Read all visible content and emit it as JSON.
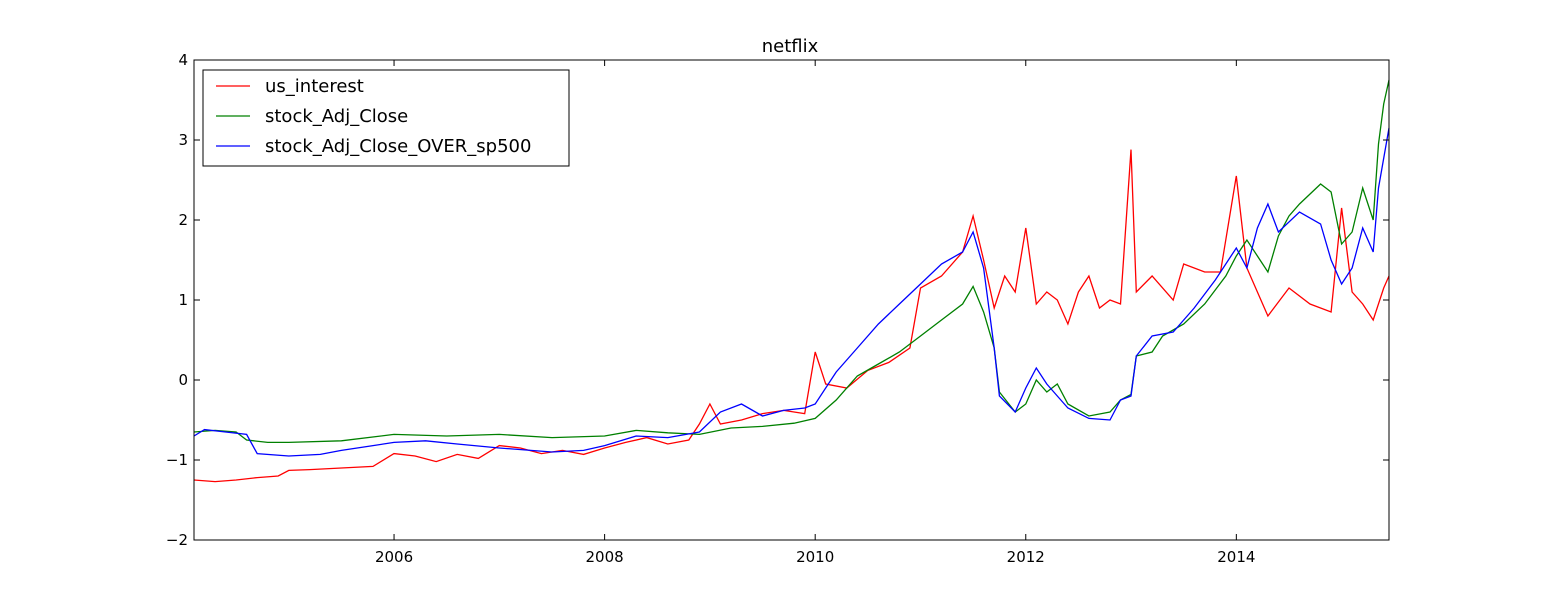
{
  "chart_data": {
    "type": "line",
    "title": "netflix",
    "xlabel": "",
    "ylabel": "",
    "xlim": [
      2004.1,
      2015.45
    ],
    "ylim": [
      -2,
      4
    ],
    "x_ticks": [
      2006,
      2008,
      2010,
      2012,
      2014
    ],
    "y_ticks": [
      -2,
      -1,
      0,
      1,
      2,
      3,
      4
    ],
    "x_tick_labels": [
      "2006",
      "2008",
      "2010",
      "2012",
      "2014"
    ],
    "y_tick_labels": [
      "−2",
      "−1",
      "0",
      "1",
      "2",
      "3",
      "4"
    ],
    "legend_position": "top-left",
    "grid": false,
    "series": [
      {
        "name": "us_interest",
        "color": "#ff0000",
        "points": [
          [
            2004.1,
            -1.25
          ],
          [
            2004.3,
            -1.27
          ],
          [
            2004.5,
            -1.25
          ],
          [
            2004.7,
            -1.22
          ],
          [
            2004.9,
            -1.2
          ],
          [
            2005.0,
            -1.13
          ],
          [
            2005.2,
            -1.12
          ],
          [
            2005.5,
            -1.1
          ],
          [
            2005.8,
            -1.08
          ],
          [
            2006.0,
            -0.92
          ],
          [
            2006.2,
            -0.95
          ],
          [
            2006.4,
            -1.02
          ],
          [
            2006.6,
            -0.93
          ],
          [
            2006.8,
            -0.98
          ],
          [
            2007.0,
            -0.82
          ],
          [
            2007.2,
            -0.85
          ],
          [
            2007.4,
            -0.92
          ],
          [
            2007.6,
            -0.88
          ],
          [
            2007.8,
            -0.93
          ],
          [
            2008.0,
            -0.85
          ],
          [
            2008.2,
            -0.78
          ],
          [
            2008.4,
            -0.72
          ],
          [
            2008.6,
            -0.8
          ],
          [
            2008.8,
            -0.75
          ],
          [
            2008.9,
            -0.55
          ],
          [
            2009.0,
            -0.3
          ],
          [
            2009.1,
            -0.55
          ],
          [
            2009.3,
            -0.5
          ],
          [
            2009.5,
            -0.42
          ],
          [
            2009.7,
            -0.38
          ],
          [
            2009.9,
            -0.42
          ],
          [
            2010.0,
            0.35
          ],
          [
            2010.1,
            -0.05
          ],
          [
            2010.3,
            -0.1
          ],
          [
            2010.5,
            0.12
          ],
          [
            2010.7,
            0.22
          ],
          [
            2010.9,
            0.4
          ],
          [
            2011.0,
            1.15
          ],
          [
            2011.2,
            1.3
          ],
          [
            2011.4,
            1.6
          ],
          [
            2011.5,
            2.05
          ],
          [
            2011.6,
            1.5
          ],
          [
            2011.7,
            0.9
          ],
          [
            2011.8,
            1.3
          ],
          [
            2011.9,
            1.1
          ],
          [
            2012.0,
            1.9
          ],
          [
            2012.1,
            0.95
          ],
          [
            2012.2,
            1.1
          ],
          [
            2012.3,
            1.0
          ],
          [
            2012.4,
            0.7
          ],
          [
            2012.5,
            1.1
          ],
          [
            2012.6,
            1.3
          ],
          [
            2012.7,
            0.9
          ],
          [
            2012.8,
            1.0
          ],
          [
            2012.9,
            0.95
          ],
          [
            2013.0,
            2.88
          ],
          [
            2013.05,
            1.1
          ],
          [
            2013.2,
            1.3
          ],
          [
            2013.4,
            1.0
          ],
          [
            2013.5,
            1.45
          ],
          [
            2013.7,
            1.35
          ],
          [
            2013.85,
            1.35
          ],
          [
            2014.0,
            2.55
          ],
          [
            2014.1,
            1.4
          ],
          [
            2014.2,
            1.1
          ],
          [
            2014.3,
            0.8
          ],
          [
            2014.5,
            1.15
          ],
          [
            2014.7,
            0.95
          ],
          [
            2014.9,
            0.85
          ],
          [
            2015.0,
            2.15
          ],
          [
            2015.1,
            1.1
          ],
          [
            2015.2,
            0.95
          ],
          [
            2015.3,
            0.75
          ],
          [
            2015.4,
            1.15
          ],
          [
            2015.45,
            1.3
          ]
        ]
      },
      {
        "name": "stock_Adj_Close",
        "color": "#008000",
        "points": [
          [
            2004.1,
            -0.65
          ],
          [
            2004.3,
            -0.63
          ],
          [
            2004.5,
            -0.65
          ],
          [
            2004.6,
            -0.75
          ],
          [
            2004.8,
            -0.78
          ],
          [
            2005.0,
            -0.78
          ],
          [
            2005.5,
            -0.76
          ],
          [
            2006.0,
            -0.68
          ],
          [
            2006.5,
            -0.7
          ],
          [
            2007.0,
            -0.68
          ],
          [
            2007.5,
            -0.72
          ],
          [
            2008.0,
            -0.7
          ],
          [
            2008.3,
            -0.63
          ],
          [
            2008.6,
            -0.66
          ],
          [
            2008.9,
            -0.68
          ],
          [
            2009.2,
            -0.6
          ],
          [
            2009.5,
            -0.58
          ],
          [
            2009.8,
            -0.54
          ],
          [
            2010.0,
            -0.48
          ],
          [
            2010.2,
            -0.25
          ],
          [
            2010.4,
            0.05
          ],
          [
            2010.6,
            0.2
          ],
          [
            2010.8,
            0.35
          ],
          [
            2011.0,
            0.55
          ],
          [
            2011.2,
            0.75
          ],
          [
            2011.4,
            0.95
          ],
          [
            2011.5,
            1.17
          ],
          [
            2011.6,
            0.85
          ],
          [
            2011.7,
            0.4
          ],
          [
            2011.75,
            -0.15
          ],
          [
            2011.9,
            -0.4
          ],
          [
            2012.0,
            -0.3
          ],
          [
            2012.1,
            0.0
          ],
          [
            2012.2,
            -0.15
          ],
          [
            2012.3,
            -0.05
          ],
          [
            2012.4,
            -0.3
          ],
          [
            2012.6,
            -0.45
          ],
          [
            2012.8,
            -0.4
          ],
          [
            2012.9,
            -0.25
          ],
          [
            2013.0,
            -0.18
          ],
          [
            2013.05,
            0.3
          ],
          [
            2013.2,
            0.35
          ],
          [
            2013.3,
            0.55
          ],
          [
            2013.5,
            0.7
          ],
          [
            2013.7,
            0.95
          ],
          [
            2013.9,
            1.3
          ],
          [
            2014.0,
            1.55
          ],
          [
            2014.1,
            1.75
          ],
          [
            2014.2,
            1.55
          ],
          [
            2014.3,
            1.35
          ],
          [
            2014.4,
            1.8
          ],
          [
            2014.5,
            2.05
          ],
          [
            2014.6,
            2.2
          ],
          [
            2014.8,
            2.45
          ],
          [
            2014.9,
            2.35
          ],
          [
            2015.0,
            1.7
          ],
          [
            2015.1,
            1.85
          ],
          [
            2015.2,
            2.4
          ],
          [
            2015.3,
            2.0
          ],
          [
            2015.35,
            2.95
          ],
          [
            2015.4,
            3.45
          ],
          [
            2015.45,
            3.75
          ]
        ]
      },
      {
        "name": "stock_Adj_Close_OVER_sp500",
        "color": "#0000ff",
        "points": [
          [
            2004.1,
            -0.7
          ],
          [
            2004.2,
            -0.62
          ],
          [
            2004.4,
            -0.65
          ],
          [
            2004.6,
            -0.68
          ],
          [
            2004.7,
            -0.92
          ],
          [
            2005.0,
            -0.95
          ],
          [
            2005.3,
            -0.93
          ],
          [
            2005.5,
            -0.88
          ],
          [
            2005.8,
            -0.82
          ],
          [
            2006.0,
            -0.78
          ],
          [
            2006.3,
            -0.76
          ],
          [
            2006.6,
            -0.8
          ],
          [
            2007.0,
            -0.85
          ],
          [
            2007.5,
            -0.9
          ],
          [
            2007.8,
            -0.88
          ],
          [
            2008.0,
            -0.82
          ],
          [
            2008.3,
            -0.7
          ],
          [
            2008.6,
            -0.72
          ],
          [
            2008.9,
            -0.65
          ],
          [
            2009.1,
            -0.4
          ],
          [
            2009.3,
            -0.3
          ],
          [
            2009.5,
            -0.45
          ],
          [
            2009.7,
            -0.38
          ],
          [
            2009.9,
            -0.35
          ],
          [
            2010.0,
            -0.3
          ],
          [
            2010.2,
            0.1
          ],
          [
            2010.4,
            0.4
          ],
          [
            2010.6,
            0.7
          ],
          [
            2010.8,
            0.95
          ],
          [
            2011.0,
            1.2
          ],
          [
            2011.2,
            1.45
          ],
          [
            2011.4,
            1.6
          ],
          [
            2011.5,
            1.85
          ],
          [
            2011.6,
            1.4
          ],
          [
            2011.7,
            0.4
          ],
          [
            2011.75,
            -0.2
          ],
          [
            2011.9,
            -0.4
          ],
          [
            2012.0,
            -0.1
          ],
          [
            2012.1,
            0.15
          ],
          [
            2012.2,
            -0.05
          ],
          [
            2012.3,
            -0.2
          ],
          [
            2012.4,
            -0.35
          ],
          [
            2012.6,
            -0.48
          ],
          [
            2012.8,
            -0.5
          ],
          [
            2012.9,
            -0.25
          ],
          [
            2013.0,
            -0.2
          ],
          [
            2013.05,
            0.3
          ],
          [
            2013.2,
            0.55
          ],
          [
            2013.4,
            0.6
          ],
          [
            2013.6,
            0.9
          ],
          [
            2013.8,
            1.25
          ],
          [
            2014.0,
            1.65
          ],
          [
            2014.1,
            1.4
          ],
          [
            2014.2,
            1.9
          ],
          [
            2014.3,
            2.2
          ],
          [
            2014.4,
            1.85
          ],
          [
            2014.6,
            2.1
          ],
          [
            2014.8,
            1.95
          ],
          [
            2014.9,
            1.5
          ],
          [
            2015.0,
            1.2
          ],
          [
            2015.1,
            1.4
          ],
          [
            2015.2,
            1.9
          ],
          [
            2015.3,
            1.6
          ],
          [
            2015.35,
            2.4
          ],
          [
            2015.45,
            3.15
          ]
        ]
      }
    ]
  }
}
